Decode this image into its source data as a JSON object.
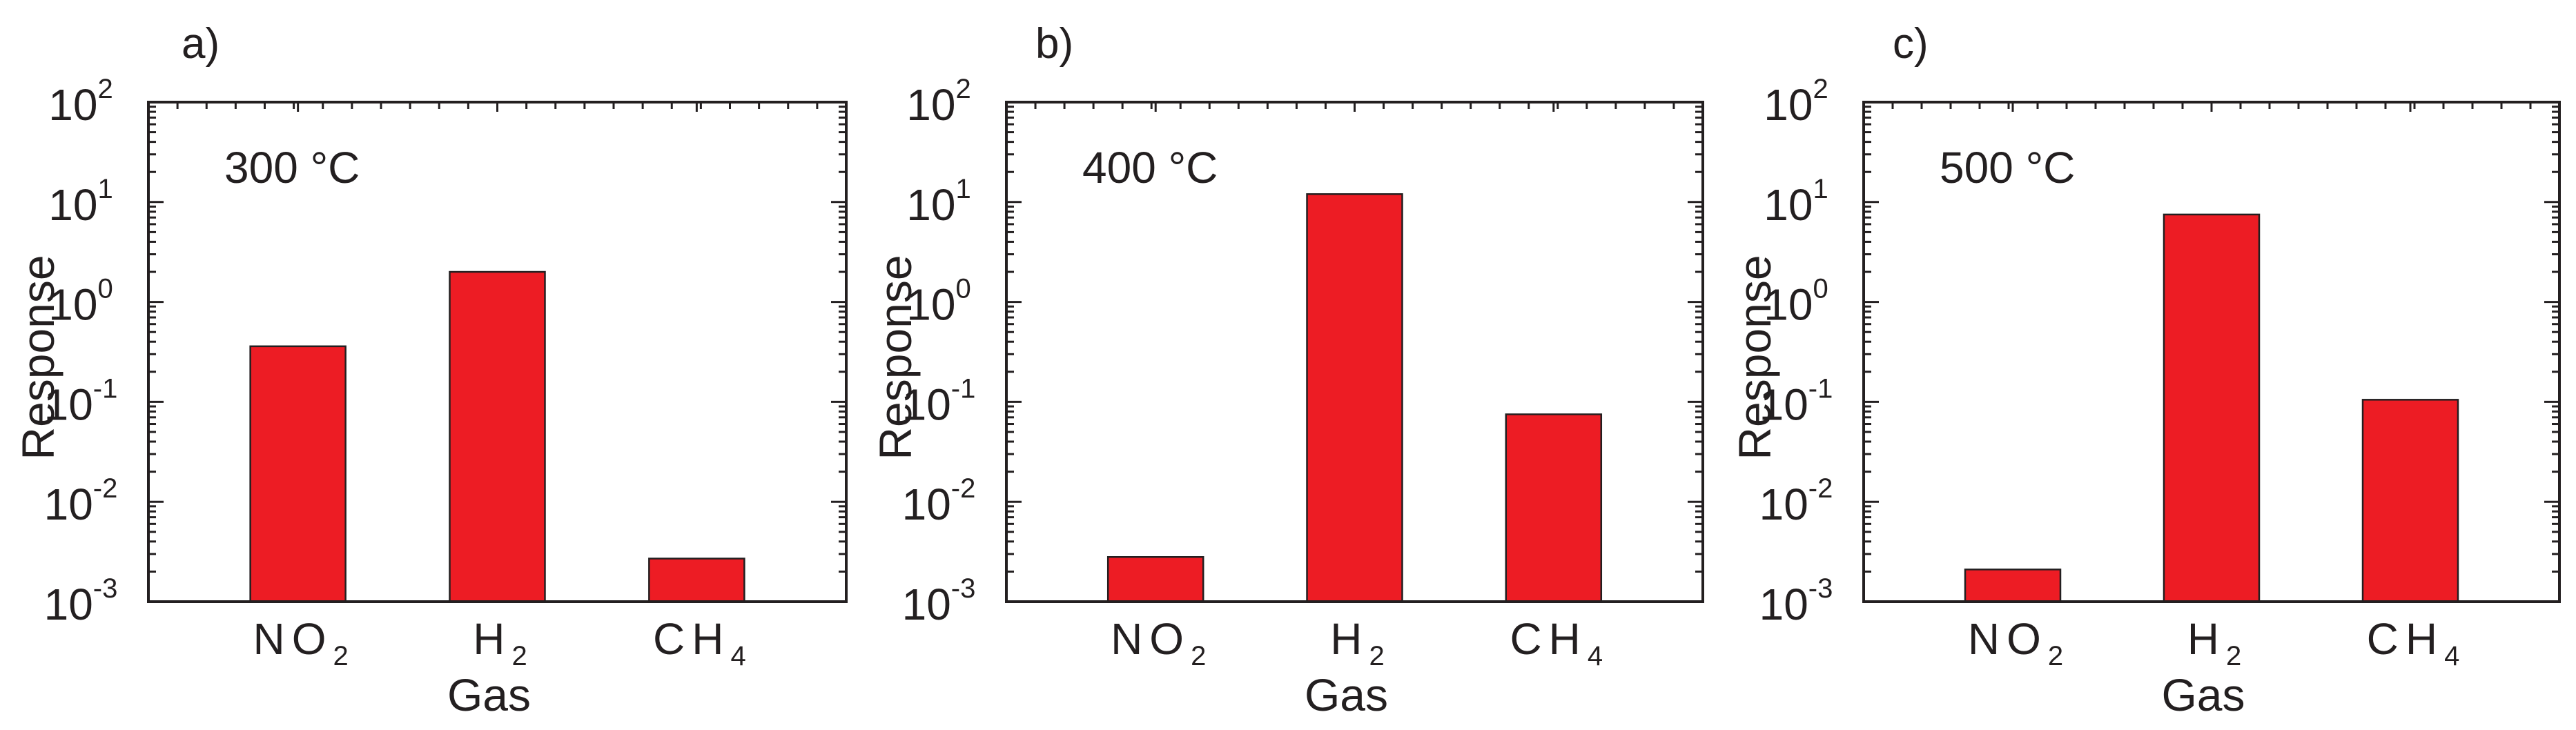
{
  "colors": {
    "bar": "#ed1c24",
    "axis": "#231f20",
    "background": "#ffffff"
  },
  "chart_data": [
    {
      "type": "bar",
      "panel_label": "a)",
      "annotation": "300 °C",
      "title": "",
      "xlabel": "Gas",
      "ylabel": "Response",
      "y_scale": "log",
      "ylim": [
        0.001,
        100
      ],
      "y_tick_labels": [
        {
          "base": "10",
          "exp": "-3"
        },
        {
          "base": "10",
          "exp": "-2"
        },
        {
          "base": "10",
          "exp": "-1"
        },
        {
          "base": "10",
          "exp": "0"
        },
        {
          "base": "10",
          "exp": "1"
        },
        {
          "base": "10",
          "exp": "2"
        }
      ],
      "categories": [
        {
          "main": "NO",
          "sub": "2"
        },
        {
          "main": "H",
          "sub": "2"
        },
        {
          "main": "CH",
          "sub": "4"
        }
      ],
      "values": [
        0.36,
        2.0,
        0.0027
      ],
      "grid": false
    },
    {
      "type": "bar",
      "panel_label": "b)",
      "annotation": "400 °C",
      "title": "",
      "xlabel": "Gas",
      "ylabel": "Response",
      "y_scale": "log",
      "ylim": [
        0.001,
        100
      ],
      "y_tick_labels": [
        {
          "base": "10",
          "exp": "-3"
        },
        {
          "base": "10",
          "exp": "-2"
        },
        {
          "base": "10",
          "exp": "-1"
        },
        {
          "base": "10",
          "exp": "0"
        },
        {
          "base": "10",
          "exp": "1"
        },
        {
          "base": "10",
          "exp": "2"
        }
      ],
      "categories": [
        {
          "main": "NO",
          "sub": "2"
        },
        {
          "main": "H",
          "sub": "2"
        },
        {
          "main": "CH",
          "sub": "4"
        }
      ],
      "values": [
        0.0028,
        12.0,
        0.075
      ],
      "grid": false
    },
    {
      "type": "bar",
      "panel_label": "c)",
      "annotation": "500 °C",
      "title": "",
      "xlabel": "Gas",
      "ylabel": "Response",
      "y_scale": "log",
      "ylim": [
        0.001,
        100
      ],
      "y_tick_labels": [
        {
          "base": "10",
          "exp": "-3"
        },
        {
          "base": "10",
          "exp": "-2"
        },
        {
          "base": "10",
          "exp": "-1"
        },
        {
          "base": "10",
          "exp": "0"
        },
        {
          "base": "10",
          "exp": "1"
        },
        {
          "base": "10",
          "exp": "2"
        }
      ],
      "categories": [
        {
          "main": "NO",
          "sub": "2"
        },
        {
          "main": "H",
          "sub": "2"
        },
        {
          "main": "CH",
          "sub": "4"
        }
      ],
      "values": [
        0.0021,
        7.5,
        0.105
      ],
      "grid": false
    }
  ]
}
